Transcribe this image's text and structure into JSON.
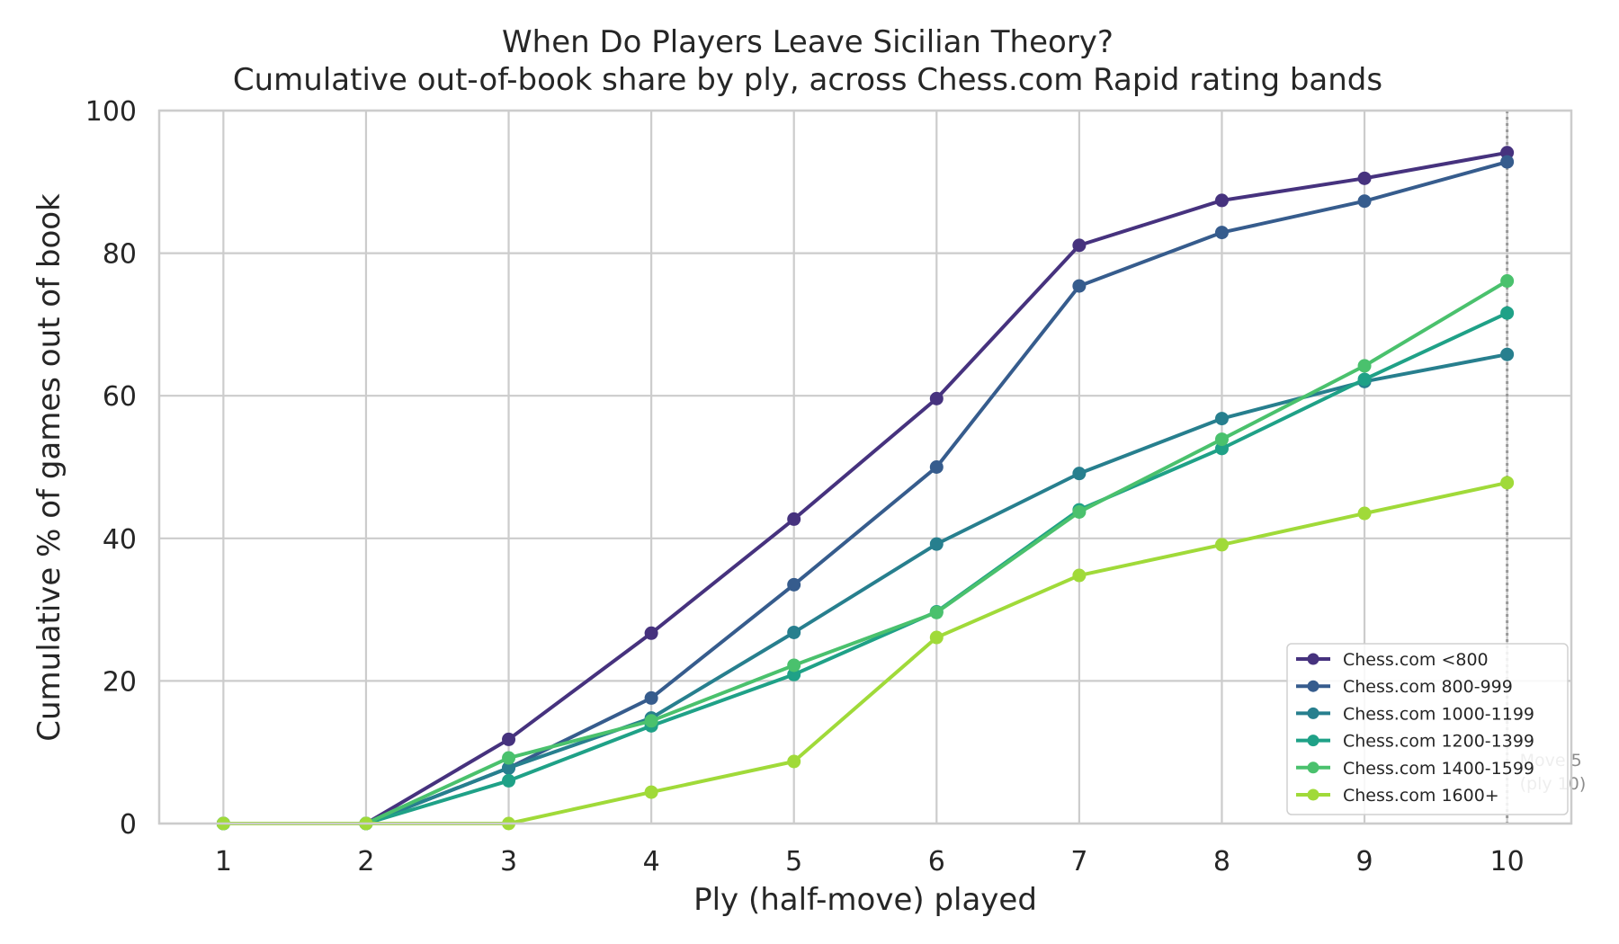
{
  "chart_data": {
    "type": "line",
    "title": "When Do Players Leave Sicilian Theory?",
    "subtitle": "Cumulative out-of-book share by ply, across Chess.com Rapid rating bands",
    "xlabel": "Ply (half-move) played",
    "ylabel": "Cumulative % of games out of book",
    "x": [
      1,
      2,
      3,
      4,
      5,
      6,
      7,
      8,
      9,
      10
    ],
    "xlim": [
      0.55,
      10.45
    ],
    "ylim": [
      0,
      100
    ],
    "yticks": [
      0,
      20,
      40,
      60,
      80,
      100
    ],
    "grid": true,
    "legend_position": "lower-right",
    "series": [
      {
        "name": "Chess.com <800",
        "color": "#46327e",
        "values": [
          0,
          0,
          11.8,
          26.7,
          42.7,
          59.6,
          81.1,
          87.4,
          90.5,
          94.1
        ]
      },
      {
        "name": "Chess.com 800-999",
        "color": "#365c8d",
        "values": [
          0,
          0,
          7.8,
          17.6,
          33.5,
          50.0,
          75.4,
          82.9,
          87.3,
          92.8
        ]
      },
      {
        "name": "Chess.com 1000-1199",
        "color": "#277f8e",
        "values": [
          0,
          0,
          7.8,
          14.8,
          26.8,
          39.2,
          49.1,
          56.8,
          62.0,
          65.8
        ]
      },
      {
        "name": "Chess.com 1200-1399",
        "color": "#1fa187",
        "values": [
          0,
          0,
          6.0,
          13.7,
          20.9,
          29.7,
          44.0,
          52.6,
          62.3,
          71.6
        ]
      },
      {
        "name": "Chess.com 1400-1599",
        "color": "#4ac16d",
        "values": [
          0,
          0,
          9.2,
          14.4,
          22.2,
          29.6,
          43.7,
          53.9,
          64.2,
          76.1
        ]
      },
      {
        "name": "Chess.com 1600+",
        "color": "#a0da39",
        "values": [
          0,
          0,
          0,
          4.4,
          8.7,
          26.1,
          34.8,
          39.1,
          43.5,
          47.8
        ]
      }
    ],
    "reference_line": {
      "x": 10,
      "style": "dotted",
      "color": "#999999",
      "label_lines": [
        "Move 5",
        "(ply 10)"
      ]
    }
  }
}
